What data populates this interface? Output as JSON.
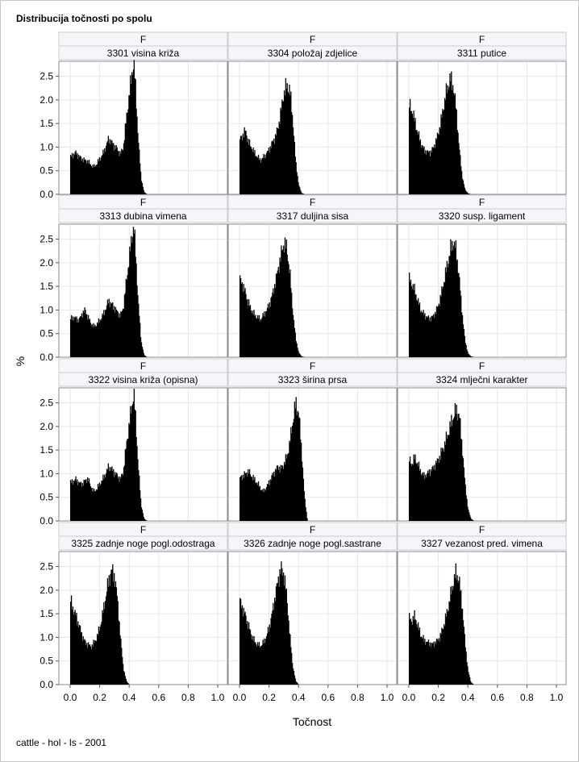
{
  "chart": {
    "title": "Distribucija točnosti po spolu",
    "footnote": "cattle - hol - ls - 2001"
  },
  "chart_data": {
    "type": "histogram-panel",
    "title": "Distribucija točnosti po spolu",
    "xlabel": "Točnost",
    "ylabel": "%",
    "xlim": [
      0.0,
      1.0
    ],
    "ylim": [
      0.0,
      2.8
    ],
    "xticks": [
      "0.0",
      "0.2",
      "0.4",
      "0.6",
      "0.8",
      "1.0"
    ],
    "yticks": [
      "0.0",
      "0.5",
      "1.0",
      "1.5",
      "2.0",
      "2.5"
    ],
    "grid": true,
    "bin_width": 0.005,
    "panels": [
      {
        "group": "F",
        "trait": "3301 visina križa",
        "x": [
          0.0,
          0.02,
          0.04,
          0.06,
          0.08,
          0.1,
          0.12,
          0.14,
          0.16,
          0.18,
          0.2,
          0.22,
          0.24,
          0.26,
          0.28,
          0.3,
          0.32,
          0.34,
          0.36,
          0.38,
          0.4,
          0.42,
          0.43,
          0.44,
          0.46,
          0.48,
          0.5,
          0.52
        ],
        "y": [
          0.78,
          0.85,
          0.88,
          0.8,
          0.75,
          0.72,
          0.7,
          0.62,
          0.58,
          0.65,
          0.75,
          0.85,
          1.0,
          1.18,
          1.1,
          1.02,
          0.95,
          0.85,
          1.0,
          1.6,
          2.1,
          2.62,
          2.78,
          2.4,
          1.2,
          0.35,
          0.05,
          0.0
        ]
      },
      {
        "group": "F",
        "trait": "3304 položaj zdjelice",
        "x": [
          0.0,
          0.02,
          0.04,
          0.06,
          0.08,
          0.1,
          0.12,
          0.14,
          0.16,
          0.18,
          0.2,
          0.22,
          0.24,
          0.26,
          0.28,
          0.3,
          0.32,
          0.34,
          0.36,
          0.38,
          0.4,
          0.42,
          0.44
        ],
        "y": [
          1.15,
          1.25,
          1.35,
          1.1,
          1.0,
          0.88,
          0.8,
          0.72,
          0.78,
          0.85,
          0.95,
          1.08,
          1.2,
          1.4,
          1.75,
          2.15,
          2.3,
          2.22,
          1.6,
          0.7,
          0.2,
          0.03,
          0.0
        ]
      },
      {
        "group": "F",
        "trait": "3311 putice",
        "x": [
          0.0,
          0.02,
          0.04,
          0.06,
          0.08,
          0.1,
          0.12,
          0.14,
          0.16,
          0.18,
          0.2,
          0.22,
          0.24,
          0.26,
          0.28,
          0.3,
          0.32,
          0.34,
          0.36,
          0.38,
          0.4,
          0.42
        ],
        "y": [
          1.9,
          1.78,
          1.55,
          1.3,
          1.1,
          0.95,
          0.9,
          0.88,
          0.95,
          1.1,
          1.3,
          1.6,
          1.95,
          2.25,
          2.45,
          2.3,
          1.8,
          1.0,
          0.4,
          0.1,
          0.02,
          0.0
        ]
      },
      {
        "group": "F",
        "trait": "3313 dubina vimena",
        "x": [
          0.0,
          0.02,
          0.04,
          0.06,
          0.08,
          0.1,
          0.12,
          0.14,
          0.16,
          0.18,
          0.2,
          0.22,
          0.24,
          0.26,
          0.28,
          0.3,
          0.32,
          0.34,
          0.36,
          0.38,
          0.4,
          0.42,
          0.43,
          0.44,
          0.46,
          0.48,
          0.5,
          0.52
        ],
        "y": [
          0.8,
          0.85,
          0.82,
          0.78,
          0.92,
          1.0,
          0.85,
          0.72,
          0.65,
          0.7,
          0.78,
          0.88,
          1.02,
          1.2,
          1.12,
          1.05,
          0.95,
          0.88,
          1.05,
          1.6,
          2.1,
          2.6,
          2.8,
          2.35,
          1.2,
          0.35,
          0.05,
          0.0
        ]
      },
      {
        "group": "F",
        "trait": "3317 duljina sisa",
        "x": [
          0.0,
          0.02,
          0.04,
          0.06,
          0.08,
          0.1,
          0.12,
          0.14,
          0.16,
          0.18,
          0.2,
          0.22,
          0.24,
          0.26,
          0.28,
          0.3,
          0.32,
          0.34,
          0.36,
          0.38,
          0.4,
          0.42,
          0.44
        ],
        "y": [
          1.65,
          1.55,
          1.35,
          1.15,
          1.0,
          0.9,
          0.85,
          0.8,
          0.88,
          0.98,
          1.1,
          1.3,
          1.55,
          1.85,
          2.15,
          2.42,
          2.3,
          1.8,
          1.0,
          0.4,
          0.1,
          0.02,
          0.0
        ]
      },
      {
        "group": "F",
        "trait": "3320 susp. ligament",
        "x": [
          0.0,
          0.02,
          0.04,
          0.06,
          0.08,
          0.1,
          0.12,
          0.14,
          0.16,
          0.18,
          0.2,
          0.22,
          0.24,
          0.26,
          0.28,
          0.3,
          0.32,
          0.34,
          0.36,
          0.38,
          0.4,
          0.42,
          0.44
        ],
        "y": [
          1.65,
          1.55,
          1.4,
          1.2,
          1.0,
          0.92,
          0.85,
          0.82,
          0.85,
          0.95,
          1.1,
          1.35,
          1.65,
          1.95,
          2.25,
          2.45,
          2.25,
          1.7,
          0.95,
          0.35,
          0.08,
          0.02,
          0.0
        ]
      },
      {
        "group": "F",
        "trait": "3322 visina križa (opisna)",
        "x": [
          0.0,
          0.02,
          0.04,
          0.06,
          0.08,
          0.1,
          0.12,
          0.14,
          0.16,
          0.18,
          0.2,
          0.22,
          0.24,
          0.26,
          0.28,
          0.3,
          0.32,
          0.34,
          0.36,
          0.38,
          0.4,
          0.42,
          0.43,
          0.44,
          0.46,
          0.48,
          0.5,
          0.52
        ],
        "y": [
          0.8,
          0.85,
          0.88,
          0.8,
          0.78,
          0.85,
          0.9,
          0.72,
          0.62,
          0.68,
          0.78,
          0.88,
          1.0,
          1.15,
          1.1,
          1.02,
          0.95,
          0.88,
          1.05,
          1.6,
          2.05,
          2.5,
          2.72,
          2.3,
          1.2,
          0.35,
          0.05,
          0.0
        ]
      },
      {
        "group": "F",
        "trait": "3323 širina prsa",
        "x": [
          0.0,
          0.02,
          0.04,
          0.06,
          0.08,
          0.1,
          0.12,
          0.14,
          0.16,
          0.18,
          0.2,
          0.22,
          0.24,
          0.26,
          0.28,
          0.3,
          0.32,
          0.34,
          0.36,
          0.38,
          0.4,
          0.42,
          0.44,
          0.46
        ],
        "y": [
          0.9,
          0.95,
          1.0,
          1.05,
          0.95,
          0.88,
          0.8,
          0.7,
          0.62,
          0.7,
          0.82,
          0.95,
          1.05,
          1.15,
          1.1,
          1.2,
          1.35,
          1.65,
          2.1,
          2.48,
          2.3,
          1.5,
          0.5,
          0.0
        ]
      },
      {
        "group": "F",
        "trait": "3324 mlječni karakter",
        "x": [
          0.0,
          0.02,
          0.04,
          0.06,
          0.08,
          0.1,
          0.12,
          0.14,
          0.16,
          0.18,
          0.2,
          0.22,
          0.24,
          0.26,
          0.28,
          0.3,
          0.32,
          0.34,
          0.36,
          0.38,
          0.4,
          0.42,
          0.44
        ],
        "y": [
          1.3,
          1.2,
          1.35,
          1.2,
          1.05,
          0.95,
          0.98,
          1.05,
          1.1,
          1.2,
          1.3,
          1.45,
          1.6,
          1.8,
          2.0,
          2.2,
          2.35,
          2.25,
          1.6,
          0.8,
          0.25,
          0.05,
          0.0
        ]
      },
      {
        "group": "F",
        "trait": "3325 zadnje noge pogl.odostraga",
        "x": [
          0.0,
          0.02,
          0.04,
          0.06,
          0.08,
          0.1,
          0.12,
          0.14,
          0.16,
          0.18,
          0.2,
          0.22,
          0.24,
          0.26,
          0.28,
          0.3,
          0.32,
          0.34,
          0.36,
          0.38,
          0.4
        ],
        "y": [
          1.8,
          1.6,
          1.45,
          1.25,
          1.05,
          0.9,
          0.85,
          0.8,
          0.88,
          1.0,
          1.2,
          1.5,
          1.85,
          2.2,
          2.42,
          2.3,
          1.8,
          1.0,
          0.35,
          0.08,
          0.0
        ]
      },
      {
        "group": "F",
        "trait": "3326 zadnje noge pogl.sastrane",
        "x": [
          0.0,
          0.02,
          0.04,
          0.06,
          0.08,
          0.1,
          0.12,
          0.14,
          0.16,
          0.18,
          0.2,
          0.22,
          0.24,
          0.26,
          0.28,
          0.3,
          0.32,
          0.34,
          0.36,
          0.38,
          0.4
        ],
        "y": [
          1.78,
          1.62,
          1.45,
          1.25,
          1.05,
          0.92,
          0.85,
          0.82,
          0.88,
          1.0,
          1.2,
          1.5,
          1.85,
          2.2,
          2.45,
          2.35,
          1.85,
          1.05,
          0.4,
          0.08,
          0.0
        ]
      },
      {
        "group": "F",
        "trait": "3327 vezanost pred. vimena",
        "x": [
          0.0,
          0.02,
          0.04,
          0.06,
          0.08,
          0.1,
          0.12,
          0.14,
          0.16,
          0.18,
          0.2,
          0.22,
          0.24,
          0.26,
          0.28,
          0.3,
          0.32,
          0.34,
          0.36,
          0.38,
          0.4,
          0.42,
          0.44
        ],
        "y": [
          1.4,
          1.35,
          1.45,
          1.25,
          1.05,
          0.95,
          0.9,
          0.88,
          0.85,
          0.9,
          0.95,
          1.1,
          1.3,
          1.55,
          1.85,
          2.15,
          2.38,
          2.2,
          1.7,
          0.9,
          0.3,
          0.05,
          0.0
        ]
      }
    ]
  }
}
